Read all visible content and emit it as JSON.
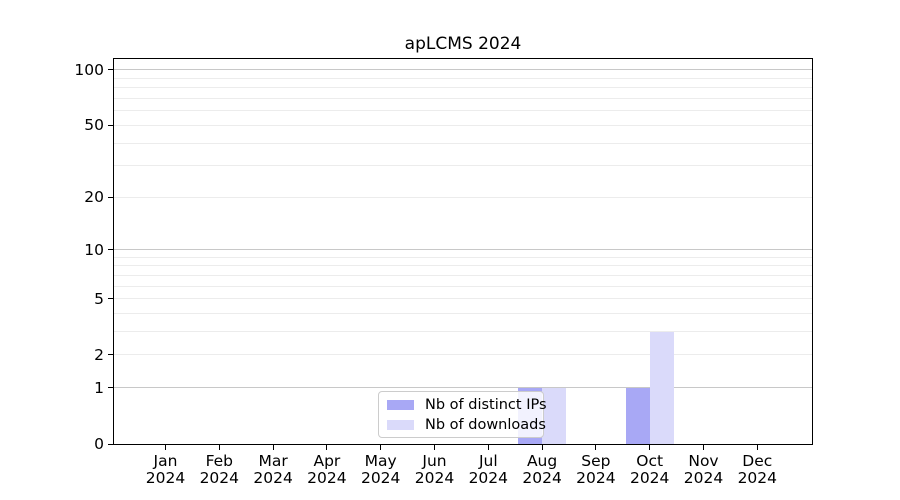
{
  "title": "apLCMS 2024",
  "chart_data": {
    "type": "bar",
    "title": "apLCMS 2024",
    "categories": [
      "Jan 2024",
      "Feb 2024",
      "Mar 2024",
      "Apr 2024",
      "May 2024",
      "Jun 2024",
      "Jul 2024",
      "Aug 2024",
      "Sep 2024",
      "Oct 2024",
      "Nov 2024",
      "Dec 2024"
    ],
    "series": [
      {
        "name": "Nb of distinct IPs",
        "color": "#a8a8f5",
        "values": [
          0,
          0,
          0,
          0,
          0,
          0,
          0,
          1,
          0,
          1,
          0,
          0
        ]
      },
      {
        "name": "Nb of downloads",
        "color": "#dadafa",
        "values": [
          0,
          0,
          0,
          0,
          0,
          0,
          0,
          1,
          0,
          3,
          0,
          0
        ]
      }
    ],
    "yscale": "log1p",
    "ylim": [
      0,
      115
    ],
    "y_ticks": [
      0,
      1,
      2,
      5,
      10,
      20,
      50,
      100
    ],
    "gridline_values": [
      1,
      2,
      3,
      4,
      5,
      6,
      7,
      8,
      9,
      10,
      20,
      30,
      40,
      50,
      60,
      70,
      80,
      90,
      100
    ],
    "major_gridline_values": [
      1,
      10,
      100
    ],
    "legend_position": "lower center",
    "colors": {
      "minor_grid": "#ececec",
      "major_grid": "#c8c8c8",
      "axis": "#000000",
      "background": "#ffffff"
    }
  }
}
